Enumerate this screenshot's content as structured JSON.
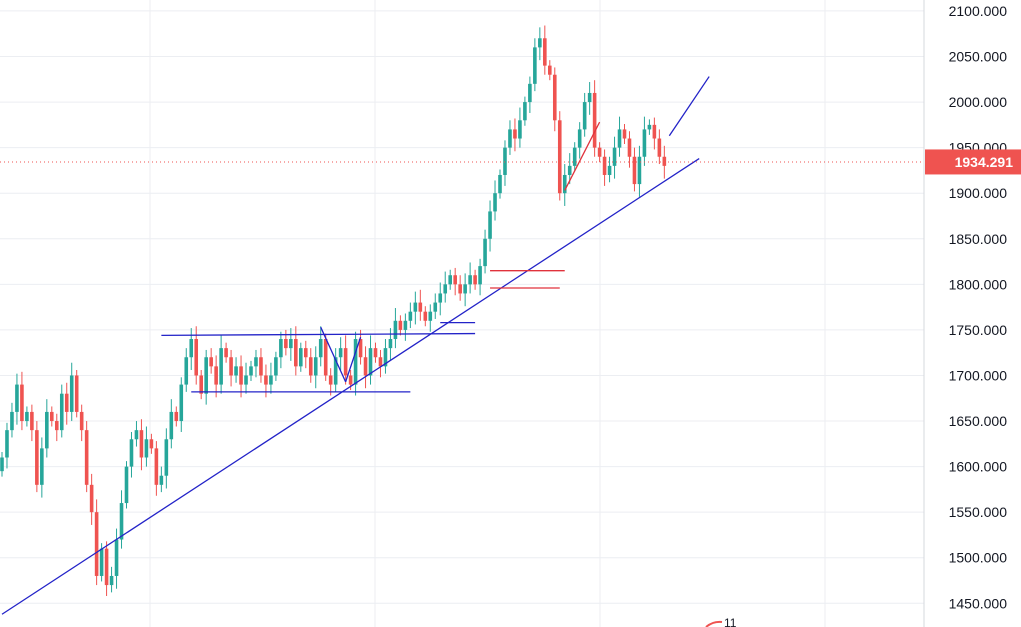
{
  "chart_data": {
    "type": "candlestick",
    "ylim": [
      1424,
      2112
    ],
    "y_ticks": [
      2100,
      2050,
      2000,
      1950,
      1900,
      1850,
      1800,
      1750,
      1700,
      1650,
      1600,
      1550,
      1500,
      1450
    ],
    "y_tick_labels": [
      "2100.000",
      "2050.000",
      "2000.000",
      "1950.000",
      "1900.000",
      "1850.000",
      "1800.000",
      "1750.000",
      "1700.000",
      "1650.000",
      "1600.000",
      "1550.000",
      "1500.000",
      "1450.000"
    ],
    "last_price": 1934.291,
    "last_price_label": "1934.291",
    "corner_label": "11",
    "grid": true,
    "colors": {
      "up": "#26a69a",
      "down": "#ef5350",
      "trendline": "#2323c8",
      "red_line": "#e0323c",
      "grid": "#eceef2",
      "price_line": "#ef5350",
      "axis_border": "#d6d8de"
    },
    "candles_close": [
      1610,
      1640,
      1660,
      1690,
      1650,
      1660,
      1640,
      1580,
      1620,
      1660,
      1650,
      1640,
      1680,
      1660,
      1700,
      1660,
      1640,
      1580,
      1550,
      1480,
      1510,
      1470,
      1480,
      1520,
      1560,
      1600,
      1630,
      1640,
      1610,
      1630,
      1620,
      1580,
      1590,
      1630,
      1660,
      1650,
      1690,
      1720,
      1740,
      1700,
      1680,
      1720,
      1710,
      1690,
      1730,
      1720,
      1700,
      1710,
      1690,
      1700,
      1710,
      1720,
      1700,
      1690,
      1700,
      1720,
      1740,
      1730,
      1740,
      1710,
      1730,
      1720,
      1700,
      1720,
      1740,
      1700,
      1690,
      1720,
      1730,
      1700,
      1690,
      1740,
      1720,
      1700,
      1730,
      1720,
      1710,
      1730,
      1740,
      1760,
      1750,
      1760,
      1770,
      1780,
      1770,
      1760,
      1770,
      1780,
      1790,
      1800,
      1810,
      1800,
      1790,
      1800,
      1810,
      1800,
      1820,
      1850,
      1880,
      1900,
      1920,
      1950,
      1970,
      1960,
      1980,
      2000,
      2020,
      2060,
      2070,
      2040,
      2030,
      1980,
      1900,
      1920,
      1930,
      1950,
      1970,
      2000,
      2010,
      1950,
      1940,
      1920,
      1930,
      1950,
      1970,
      1960,
      1940,
      1910,
      1940,
      1970,
      1975,
      1960,
      1940,
      1930
    ],
    "trendlines": [
      {
        "name": "main-support",
        "color": "trendline",
        "points": [
          [
            0,
            1438
          ],
          [
            140,
            1938
          ]
        ]
      },
      {
        "name": "range-top",
        "color": "trendline",
        "points": [
          [
            32,
            1744
          ],
          [
            95,
            1746
          ]
        ]
      },
      {
        "name": "range-bottom",
        "color": "trendline",
        "points": [
          [
            38,
            1682
          ],
          [
            82,
            1682
          ]
        ]
      },
      {
        "name": "zigzag-1",
        "color": "trendline",
        "points": [
          [
            64,
            1753
          ],
          [
            69,
            1693
          ]
        ]
      },
      {
        "name": "zigzag-2",
        "color": "trendline",
        "points": [
          [
            69,
            1693
          ],
          [
            72,
            1742
          ]
        ]
      },
      {
        "name": "consolidation-box",
        "color": "trendline",
        "points": [
          [
            88,
            1758
          ],
          [
            95,
            1758
          ]
        ]
      },
      {
        "name": "upper-channel",
        "color": "trendline",
        "points": [
          [
            134,
            1963
          ],
          [
            142,
            2028
          ]
        ]
      },
      {
        "name": "flag-top",
        "color": "red_line",
        "points": [
          [
            98,
            1815
          ],
          [
            113,
            1815
          ]
        ]
      },
      {
        "name": "flag-bottom",
        "color": "red_line",
        "points": [
          [
            98,
            1796
          ],
          [
            112,
            1796
          ]
        ]
      },
      {
        "name": "up-channel",
        "color": "red_line",
        "points": [
          [
            113,
            1903
          ],
          [
            120,
            1978
          ]
        ]
      }
    ]
  }
}
